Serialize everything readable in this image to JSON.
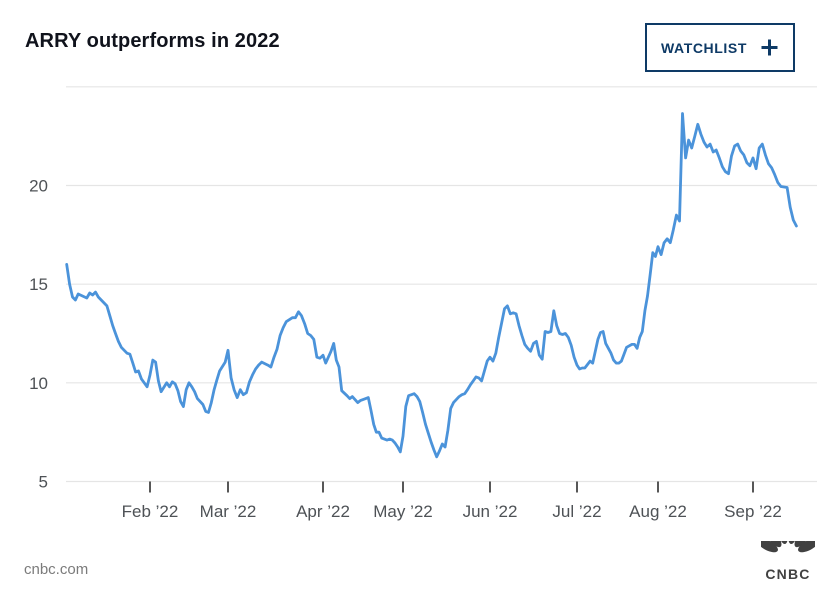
{
  "header": {
    "title": "ARRY outperforms in 2022",
    "watchlist_button": {
      "label": "WATCHLIST",
      "plus_icon": "+"
    }
  },
  "footer": {
    "source": "cnbc.com",
    "logo_text": "CNBC"
  },
  "colors": {
    "line": "#4b93da",
    "navy": "#0e3a66",
    "grid": "#e5e5e5",
    "axis_tick": "#2d2d2d",
    "axis_text": "#4e5256",
    "title_text": "#10131c",
    "footer_text": "#7b7b7b",
    "logo": "#414141"
  },
  "chart_data": {
    "type": "line",
    "title": "ARRY outperforms in 2022",
    "ticker": "ARRY",
    "xlabel": "",
    "ylabel": "",
    "grid": true,
    "ylim": [
      5,
      25
    ],
    "y_tick_labels": [
      "5",
      "10",
      "15",
      "20"
    ],
    "y_grid_values": [
      5,
      10,
      15,
      20,
      25
    ],
    "x_tick_labels": [
      "Feb ’22",
      "Mar ’22",
      "Apr ’22",
      "May ’22",
      "Jun ’22",
      "Jul ’22",
      "Aug ’22",
      "Sep ’22"
    ],
    "x_range": [
      "2022-01-03",
      "2022-09-15"
    ],
    "series": [
      {
        "name": "ARRY",
        "points": [
          [
            "2022-01-03",
            16.0
          ],
          [
            "2022-01-04",
            15.0
          ],
          [
            "2022-01-05",
            14.35
          ],
          [
            "2022-01-06",
            14.2
          ],
          [
            "2022-01-07",
            14.5
          ],
          [
            "2022-01-10",
            14.3
          ],
          [
            "2022-01-11",
            14.55
          ],
          [
            "2022-01-12",
            14.45
          ],
          [
            "2022-01-13",
            14.6
          ],
          [
            "2022-01-14",
            14.35
          ],
          [
            "2022-01-17",
            13.9
          ],
          [
            "2022-01-18",
            13.4
          ],
          [
            "2022-01-19",
            12.9
          ],
          [
            "2022-01-20",
            12.5
          ],
          [
            "2022-01-21",
            12.1
          ],
          [
            "2022-01-22",
            11.8
          ],
          [
            "2022-01-24",
            11.5
          ],
          [
            "2022-01-25",
            11.45
          ],
          [
            "2022-01-26",
            11.0
          ],
          [
            "2022-01-27",
            10.55
          ],
          [
            "2022-01-28",
            10.6
          ],
          [
            "2022-01-29",
            10.2
          ],
          [
            "2022-01-31",
            9.8
          ],
          [
            "2022-02-01",
            10.4
          ],
          [
            "2022-02-02",
            11.15
          ],
          [
            "2022-02-03",
            11.05
          ],
          [
            "2022-02-04",
            10.1
          ],
          [
            "2022-02-05",
            9.55
          ],
          [
            "2022-02-07",
            10.0
          ],
          [
            "2022-02-08",
            9.8
          ],
          [
            "2022-02-09",
            10.05
          ],
          [
            "2022-02-10",
            9.95
          ],
          [
            "2022-02-11",
            9.6
          ],
          [
            "2022-02-12",
            9.05
          ],
          [
            "2022-02-13",
            8.8
          ],
          [
            "2022-02-14",
            9.65
          ],
          [
            "2022-02-15",
            10.0
          ],
          [
            "2022-02-16",
            9.8
          ],
          [
            "2022-02-17",
            9.55
          ],
          [
            "2022-02-18",
            9.2
          ],
          [
            "2022-02-20",
            8.9
          ],
          [
            "2022-02-21",
            8.55
          ],
          [
            "2022-02-22",
            8.5
          ],
          [
            "2022-02-23",
            9.0
          ],
          [
            "2022-02-24",
            9.65
          ],
          [
            "2022-02-25",
            10.15
          ],
          [
            "2022-02-26",
            10.6
          ],
          [
            "2022-02-28",
            11.05
          ],
          [
            "2022-03-01",
            11.65
          ],
          [
            "2022-03-02",
            10.25
          ],
          [
            "2022-03-03",
            9.65
          ],
          [
            "2022-03-04",
            9.25
          ],
          [
            "2022-03-05",
            9.65
          ],
          [
            "2022-03-06",
            9.4
          ],
          [
            "2022-03-07",
            9.5
          ],
          [
            "2022-03-08",
            10.05
          ],
          [
            "2022-03-09",
            10.4
          ],
          [
            "2022-03-10",
            10.7
          ],
          [
            "2022-03-11",
            10.9
          ],
          [
            "2022-03-12",
            11.05
          ],
          [
            "2022-03-14",
            10.9
          ],
          [
            "2022-03-15",
            10.8
          ],
          [
            "2022-03-16",
            11.3
          ],
          [
            "2022-03-17",
            11.7
          ],
          [
            "2022-03-18",
            12.4
          ],
          [
            "2022-03-19",
            12.8
          ],
          [
            "2022-03-20",
            13.1
          ],
          [
            "2022-03-21",
            13.2
          ],
          [
            "2022-03-22",
            13.3
          ],
          [
            "2022-03-23",
            13.3
          ],
          [
            "2022-03-24",
            13.6
          ],
          [
            "2022-03-25",
            13.4
          ],
          [
            "2022-03-26",
            13.0
          ],
          [
            "2022-03-27",
            12.5
          ],
          [
            "2022-03-28",
            12.4
          ],
          [
            "2022-03-29",
            12.2
          ],
          [
            "2022-03-30",
            11.3
          ],
          [
            "2022-03-31",
            11.25
          ],
          [
            "2022-04-01",
            11.4
          ],
          [
            "2022-04-02",
            11.0
          ],
          [
            "2022-04-04",
            11.6
          ],
          [
            "2022-04-05",
            12.0
          ],
          [
            "2022-04-06",
            11.15
          ],
          [
            "2022-04-07",
            10.8
          ],
          [
            "2022-04-08",
            9.6
          ],
          [
            "2022-04-10",
            9.35
          ],
          [
            "2022-04-11",
            9.2
          ],
          [
            "2022-04-12",
            9.3
          ],
          [
            "2022-04-13",
            9.15
          ],
          [
            "2022-04-14",
            9.0
          ],
          [
            "2022-04-15",
            9.1
          ],
          [
            "2022-04-17",
            9.2
          ],
          [
            "2022-04-18",
            9.25
          ],
          [
            "2022-04-19",
            8.6
          ],
          [
            "2022-04-20",
            7.9
          ],
          [
            "2022-04-21",
            7.5
          ],
          [
            "2022-04-22",
            7.5
          ],
          [
            "2022-04-23",
            7.2
          ],
          [
            "2022-04-25",
            7.1
          ],
          [
            "2022-04-26",
            7.15
          ],
          [
            "2022-04-27",
            7.1
          ],
          [
            "2022-04-28",
            6.95
          ],
          [
            "2022-04-29",
            6.75
          ],
          [
            "2022-04-30",
            6.5
          ],
          [
            "2022-05-01",
            7.3
          ],
          [
            "2022-05-02",
            8.8
          ],
          [
            "2022-05-03",
            9.35
          ],
          [
            "2022-05-05",
            9.45
          ],
          [
            "2022-05-06",
            9.3
          ],
          [
            "2022-05-07",
            9.05
          ],
          [
            "2022-05-08",
            8.5
          ],
          [
            "2022-05-09",
            7.9
          ],
          [
            "2022-05-10",
            7.45
          ],
          [
            "2022-05-11",
            7.0
          ],
          [
            "2022-05-12",
            6.6
          ],
          [
            "2022-05-13",
            6.25
          ],
          [
            "2022-05-14",
            6.55
          ],
          [
            "2022-05-15",
            6.9
          ],
          [
            "2022-05-16",
            6.75
          ],
          [
            "2022-05-17",
            7.6
          ],
          [
            "2022-05-18",
            8.7
          ],
          [
            "2022-05-19",
            9.0
          ],
          [
            "2022-05-21",
            9.3
          ],
          [
            "2022-05-22",
            9.4
          ],
          [
            "2022-05-23",
            9.45
          ],
          [
            "2022-05-24",
            9.65
          ],
          [
            "2022-05-25",
            9.9
          ],
          [
            "2022-05-26",
            10.1
          ],
          [
            "2022-05-27",
            10.3
          ],
          [
            "2022-05-28",
            10.25
          ],
          [
            "2022-05-29",
            10.1
          ],
          [
            "2022-05-30",
            10.6
          ],
          [
            "2022-05-31",
            11.1
          ],
          [
            "2022-06-01",
            11.3
          ],
          [
            "2022-06-02",
            11.1
          ],
          [
            "2022-06-03",
            11.5
          ],
          [
            "2022-06-04",
            12.3
          ],
          [
            "2022-06-06",
            13.75
          ],
          [
            "2022-06-07",
            13.9
          ],
          [
            "2022-06-08",
            13.5
          ],
          [
            "2022-06-09",
            13.55
          ],
          [
            "2022-06-10",
            13.5
          ],
          [
            "2022-06-11",
            12.9
          ],
          [
            "2022-06-12",
            12.4
          ],
          [
            "2022-06-13",
            11.95
          ],
          [
            "2022-06-14",
            11.75
          ],
          [
            "2022-06-15",
            11.6
          ],
          [
            "2022-06-16",
            12.0
          ],
          [
            "2022-06-17",
            12.1
          ],
          [
            "2022-06-18",
            11.4
          ],
          [
            "2022-06-19",
            11.2
          ],
          [
            "2022-06-20",
            12.6
          ],
          [
            "2022-06-21",
            12.55
          ],
          [
            "2022-06-22",
            12.6
          ],
          [
            "2022-06-23",
            13.65
          ],
          [
            "2022-06-24",
            12.9
          ],
          [
            "2022-06-25",
            12.5
          ],
          [
            "2022-06-26",
            12.45
          ],
          [
            "2022-06-27",
            12.5
          ],
          [
            "2022-06-28",
            12.3
          ],
          [
            "2022-06-29",
            11.9
          ],
          [
            "2022-06-30",
            11.3
          ],
          [
            "2022-07-01",
            10.9
          ],
          [
            "2022-07-02",
            10.7
          ],
          [
            "2022-07-03",
            10.75
          ],
          [
            "2022-07-04",
            10.75
          ],
          [
            "2022-07-06",
            11.1
          ],
          [
            "2022-07-07",
            11.0
          ],
          [
            "2022-07-08",
            11.6
          ],
          [
            "2022-07-09",
            12.2
          ],
          [
            "2022-07-10",
            12.55
          ],
          [
            "2022-07-11",
            12.6
          ],
          [
            "2022-07-12",
            12.0
          ],
          [
            "2022-07-14",
            11.5
          ],
          [
            "2022-07-15",
            11.15
          ],
          [
            "2022-07-16",
            11.0
          ],
          [
            "2022-07-17",
            11.0
          ],
          [
            "2022-07-18",
            11.1
          ],
          [
            "2022-07-19",
            11.45
          ],
          [
            "2022-07-20",
            11.8
          ],
          [
            "2022-07-22",
            11.95
          ],
          [
            "2022-07-23",
            11.95
          ],
          [
            "2022-07-24",
            11.75
          ],
          [
            "2022-07-25",
            12.3
          ],
          [
            "2022-07-26",
            12.6
          ],
          [
            "2022-07-27",
            13.65
          ],
          [
            "2022-07-28",
            14.4
          ],
          [
            "2022-07-29",
            15.5
          ],
          [
            "2022-07-30",
            16.6
          ],
          [
            "2022-07-31",
            16.4
          ],
          [
            "2022-08-01",
            16.9
          ],
          [
            "2022-08-02",
            16.5
          ],
          [
            "2022-08-03",
            17.1
          ],
          [
            "2022-08-04",
            17.3
          ],
          [
            "2022-08-05",
            17.1
          ],
          [
            "2022-08-06",
            17.75
          ],
          [
            "2022-08-07",
            18.5
          ],
          [
            "2022-08-08",
            18.2
          ],
          [
            "2022-08-09",
            23.65
          ],
          [
            "2022-08-10",
            21.4
          ],
          [
            "2022-08-11",
            22.3
          ],
          [
            "2022-08-12",
            21.9
          ],
          [
            "2022-08-13",
            22.5
          ],
          [
            "2022-08-14",
            23.1
          ],
          [
            "2022-08-15",
            22.6
          ],
          [
            "2022-08-16",
            22.2
          ],
          [
            "2022-08-17",
            21.95
          ],
          [
            "2022-08-18",
            22.1
          ],
          [
            "2022-08-19",
            21.7
          ],
          [
            "2022-08-20",
            21.8
          ],
          [
            "2022-08-21",
            21.4
          ],
          [
            "2022-08-22",
            20.95
          ],
          [
            "2022-08-23",
            20.7
          ],
          [
            "2022-08-24",
            20.6
          ],
          [
            "2022-08-25",
            21.5
          ],
          [
            "2022-08-26",
            22.0
          ],
          [
            "2022-08-27",
            22.1
          ],
          [
            "2022-08-28",
            21.75
          ],
          [
            "2022-08-29",
            21.55
          ],
          [
            "2022-08-30",
            21.15
          ],
          [
            "2022-08-31",
            21.0
          ],
          [
            "2022-09-01",
            21.4
          ],
          [
            "2022-09-02",
            20.85
          ],
          [
            "2022-09-03",
            21.9
          ],
          [
            "2022-09-04",
            22.1
          ],
          [
            "2022-09-05",
            21.55
          ],
          [
            "2022-09-06",
            21.1
          ],
          [
            "2022-09-07",
            20.9
          ],
          [
            "2022-09-08",
            20.55
          ],
          [
            "2022-09-09",
            20.15
          ],
          [
            "2022-09-10",
            19.95
          ],
          [
            "2022-09-12",
            19.9
          ],
          [
            "2022-09-13",
            18.9
          ],
          [
            "2022-09-14",
            18.25
          ],
          [
            "2022-09-15",
            17.95
          ]
        ]
      }
    ]
  }
}
